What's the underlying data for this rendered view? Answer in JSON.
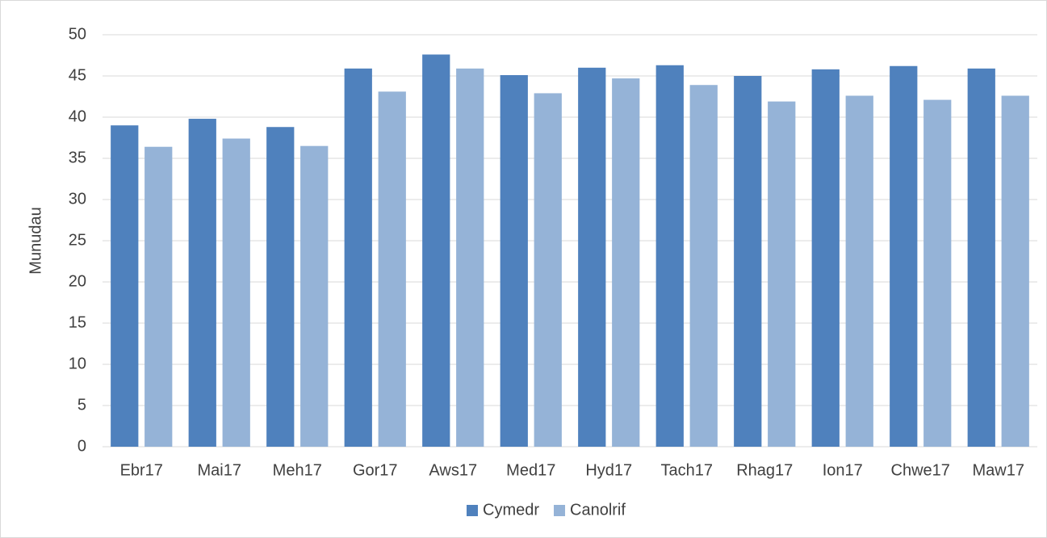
{
  "chart_data": {
    "type": "bar",
    "y_label": "Munudau",
    "categories": [
      "Ebr17",
      "Mai17",
      "Meh17",
      "Gor17",
      "Aws17",
      "Med17",
      "Hyd17",
      "Tach17",
      "Rhag17",
      "Ion17",
      "Chwe17",
      "Maw17"
    ],
    "series": [
      {
        "name": "Cymedr",
        "color": "#4f81bd",
        "values": [
          39.0,
          39.8,
          38.8,
          45.9,
          47.6,
          45.1,
          46.0,
          46.3,
          45.0,
          45.8,
          46.2,
          45.9
        ]
      },
      {
        "name": "Canolrif",
        "color": "#95b3d7",
        "values": [
          36.4,
          37.4,
          36.5,
          43.1,
          45.9,
          42.9,
          44.7,
          43.9,
          41.9,
          42.6,
          42.1,
          42.6
        ]
      }
    ],
    "ylim": [
      0,
      50
    ],
    "yticks": [
      0,
      5,
      10,
      15,
      20,
      25,
      30,
      35,
      40,
      45,
      50
    ],
    "grid": true,
    "legend": "bottom"
  }
}
